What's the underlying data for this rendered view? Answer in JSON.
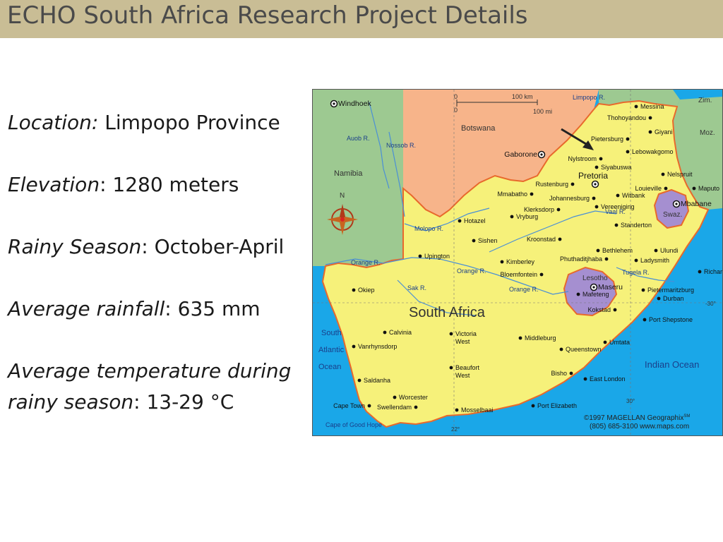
{
  "slide": {
    "title": "ECHO South Africa Research Project Details"
  },
  "details": {
    "location": {
      "label": "Location:",
      "value": " Limpopo Province"
    },
    "elevation": {
      "label": "Elevation",
      "value": ": 1280 meters"
    },
    "rainy_season": {
      "label": "Rainy Season",
      "value": ": October-April"
    },
    "rainfall": {
      "label": "Average rainfall",
      "value": ": 635 mm"
    },
    "temperature": {
      "label_line1": "Average temperature during",
      "label_line2": "rainy season",
      "value": ": 13-29 °C"
    }
  },
  "map": {
    "country_label": "South Africa",
    "regions": {
      "namibia": "Namibia",
      "botswana": "Botswana",
      "zimbabwe": "Zim.",
      "mozambique": "Moz.",
      "swaziland": "Swaz.",
      "lesotho": "Lesotho"
    },
    "cities": [
      {
        "name": "Windhoek",
        "capital": true
      },
      {
        "name": "Gaborone",
        "capital": true
      },
      {
        "name": "Pretoria",
        "capital": true
      },
      {
        "name": "Mbabane",
        "capital": true
      },
      {
        "name": "Maseru",
        "capital": true
      },
      {
        "name": "Messina"
      },
      {
        "name": "Thohoyandou"
      },
      {
        "name": "Giyani"
      },
      {
        "name": "Pietersburg"
      },
      {
        "name": "Lebowakgomo"
      },
      {
        "name": "Nylstroom"
      },
      {
        "name": "Siyabuswa"
      },
      {
        "name": "Nelspruit"
      },
      {
        "name": "Maputo"
      },
      {
        "name": "Louieville"
      },
      {
        "name": "Rustenburg"
      },
      {
        "name": "Mmabatho"
      },
      {
        "name": "Johannesburg"
      },
      {
        "name": "Witbank"
      },
      {
        "name": "Vereeniging"
      },
      {
        "name": "Klerksdorp"
      },
      {
        "name": "Standerton"
      },
      {
        "name": "Hotazel"
      },
      {
        "name": "Vryburg"
      },
      {
        "name": "Sishen"
      },
      {
        "name": "Kroonstad"
      },
      {
        "name": "Upington"
      },
      {
        "name": "Kimberley"
      },
      {
        "name": "Phuthaditjhaba"
      },
      {
        "name": "Bethlehem"
      },
      {
        "name": "Ulundi"
      },
      {
        "name": "Ladysmith"
      },
      {
        "name": "Richard's Bay"
      },
      {
        "name": "Bloemfontein"
      },
      {
        "name": "Mafeteng"
      },
      {
        "name": "Okiep"
      },
      {
        "name": "Pietermaritzburg"
      },
      {
        "name": "Durban"
      },
      {
        "name": "Kokstad"
      },
      {
        "name": "Port Shepstone"
      },
      {
        "name": "Calvinia"
      },
      {
        "name": "Victoria West"
      },
      {
        "name": "Middleburg"
      },
      {
        "name": "Umtata"
      },
      {
        "name": "Vanrhynsdorp"
      },
      {
        "name": "Queenstown"
      },
      {
        "name": "Beaufort West"
      },
      {
        "name": "Saldanha"
      },
      {
        "name": "Bisho"
      },
      {
        "name": "East London"
      },
      {
        "name": "Worcester"
      },
      {
        "name": "Cape Town"
      },
      {
        "name": "Swellendam"
      },
      {
        "name": "Mosselbaai"
      },
      {
        "name": "Port Elizabeth"
      }
    ],
    "rivers": [
      "Limpopo R.",
      "Auob R.",
      "Nossob R.",
      "Molopo R.",
      "Orange R.",
      "Vaal R.",
      "Sak R.",
      "Tugela R."
    ],
    "water": [
      "South Atlantic Ocean",
      "Indian Ocean",
      "Cape of Good Hope"
    ],
    "scale": {
      "zero_top": "0",
      "zero_bottom": "0",
      "km": "100 km",
      "mi": "100 mi"
    },
    "compass_north": "N",
    "graticule": {
      "lat30_left": "30°",
      "lat30_right": "-30°",
      "lon22": "22°"
    },
    "copyright": {
      "line1": "©1997 MAGELLAN Geographix",
      "sm": "SM",
      "line2": "(805) 685-3100  www.maps.com"
    },
    "colors": {
      "ocean": "#1aa7e8",
      "south_africa": "#f6f17a",
      "namibia": "#9dc991",
      "botswana": "#f7b48a",
      "zimbabwe_mozambique": "#9dc991",
      "lesotho_swaziland": "#a58fd0",
      "border": "#e8692c",
      "river": "#4a8fd6"
    }
  }
}
